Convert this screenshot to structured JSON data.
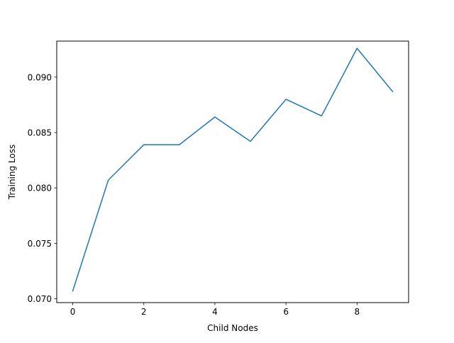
{
  "chart_data": {
    "type": "line",
    "title": "",
    "xlabel": "Child Nodes",
    "ylabel": "Training Loss",
    "xlim": [
      -0.45,
      9.45
    ],
    "ylim": [
      0.06965,
      0.09325
    ],
    "xticks": [
      0,
      2,
      4,
      6,
      8
    ],
    "xtick_labels": [
      "0",
      "2",
      "4",
      "6",
      "8"
    ],
    "yticks": [
      0.07,
      0.075,
      0.08,
      0.085,
      0.09
    ],
    "ytick_labels": [
      "0.070",
      "0.075",
      "0.080",
      "0.085",
      "0.090"
    ],
    "grid": false,
    "legend": "none",
    "series": [
      {
        "color": "#1f77b4",
        "x": [
          0,
          1,
          2,
          3,
          4,
          5,
          6,
          7,
          8,
          9
        ],
        "y": [
          0.0707,
          0.0807,
          0.0839,
          0.0839,
          0.0864,
          0.0842,
          0.088,
          0.0865,
          0.0926,
          0.0887
        ]
      }
    ]
  }
}
